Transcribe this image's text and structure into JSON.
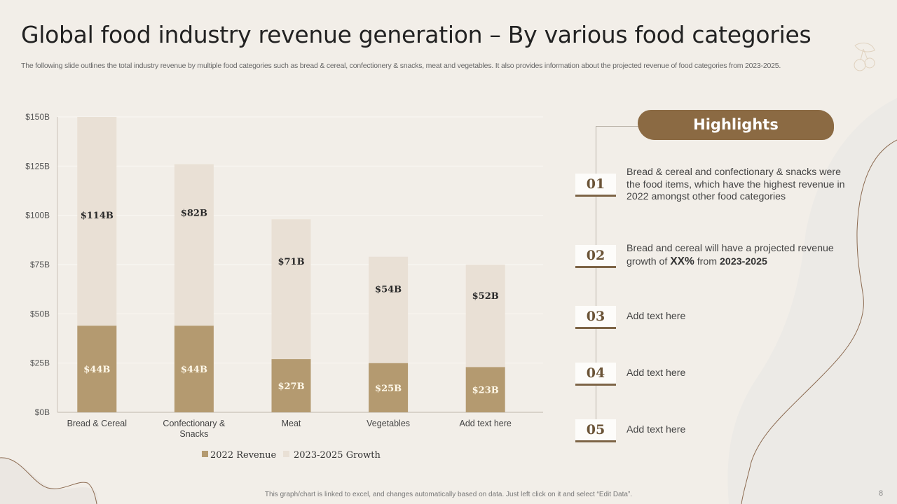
{
  "slide": {
    "title": "Global food industry revenue generation – By various food categories",
    "subtitle": "The following slide outlines the total industry revenue by multiple food categories such as bread & cereal, confectionery & snacks, meat and vegetables. It also provides information about the projected revenue of food categories from 2023-2025.",
    "footnote": "This graph/chart is linked to excel, and changes automatically based on data. Just left click on it and select “Edit Data”.",
    "page_number": "8",
    "decor_icon": "cherry-icon"
  },
  "colors": {
    "revenue_2022": "#b49a70",
    "growth_2023_2025": "#e9e0d5",
    "accent": "#8b6a43",
    "background": "#f2eee8"
  },
  "chart_data": {
    "type": "bar",
    "stacked": true,
    "title": "",
    "xlabel": "",
    "ylabel": "",
    "categories": [
      "Bread & Cereal",
      "Confectionary & Snacks",
      "Meat",
      "Vegetables",
      "Add text here"
    ],
    "category_lines": [
      [
        "Bread & Cereal"
      ],
      [
        "Confectionary &",
        "Snacks"
      ],
      [
        "Meat"
      ],
      [
        "Vegetables"
      ],
      [
        "Add text here"
      ]
    ],
    "series": [
      {
        "name": "2022 Revenue",
        "values": [
          44,
          44,
          27,
          25,
          23
        ],
        "labels": [
          "$44B",
          "$44B",
          "$27B",
          "$25B",
          "$23B"
        ],
        "color": "#b49a70",
        "label_color": "#fff8e8"
      },
      {
        "name": "2023-2025 Growth",
        "values": [
          114,
          82,
          71,
          54,
          52
        ],
        "labels": [
          "$114B",
          "$82B",
          "$71B",
          "$54B",
          "$52B"
        ],
        "color": "#e9e0d5",
        "label_color": "#2a2a2a"
      }
    ],
    "ylim": [
      0,
      150
    ],
    "yticks": [
      0,
      25,
      50,
      75,
      100,
      125,
      150
    ],
    "ytick_labels": [
      "$0B",
      "$25B",
      "$50B",
      "$75B",
      "$100B",
      "$125B",
      "$150B"
    ],
    "grid": true,
    "legend": "bottom-center"
  },
  "highlights": {
    "title": "Highlights",
    "items": [
      {
        "num": "01",
        "text": "Bread & cereal and confectionary & snacks were the food items, which have the highest revenue in 2022 amongst other food categories"
      },
      {
        "num": "02",
        "text_parts": [
          "Bread and cereal will have a projected revenue growth of ",
          "XX%",
          " from ",
          "2023-2025"
        ]
      },
      {
        "num": "03",
        "text": "Add text here"
      },
      {
        "num": "04",
        "text": "Add text here"
      },
      {
        "num": "05",
        "text": "Add text here"
      }
    ]
  }
}
